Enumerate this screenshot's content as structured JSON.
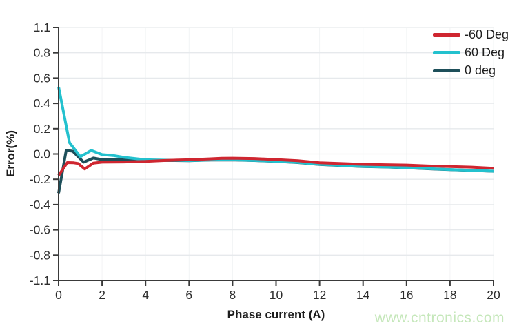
{
  "watermark": {
    "text": "www.cntronics.com",
    "color": "#c5e7ba"
  },
  "chart_data": {
    "type": "line",
    "title": "",
    "xlabel": "Phase current (A)",
    "ylabel": "Error(%)",
    "x_tick_labels": [
      "0",
      "2",
      "4",
      "6",
      "8",
      "10",
      "12",
      "14",
      "16",
      "18",
      "20"
    ],
    "x_tick_values": [
      0,
      2,
      4,
      6,
      8,
      10,
      12,
      14,
      16,
      18,
      20
    ],
    "y_tick_labels": [
      "1.1",
      "0.8",
      "0.6",
      "0.4",
      "0.2",
      "0.0",
      "-0.2",
      "-0.4",
      "-0.6",
      "-0.8",
      "-1.1"
    ],
    "xlim": [
      0,
      20
    ],
    "ylim": [
      -1.1,
      1.1
    ],
    "y_axis_note": "ticks equally spaced; labeled every 0.2 between -0.8 and 0.8 with end labels at -1.1 and 1.1",
    "grid": {
      "horizontal": true,
      "vertical": "very faint"
    },
    "legend_position": "top-right",
    "axis_color": "#3a3a3a",
    "grid_color": "#e6e9ec",
    "grid_color_vertical": "#f2f4f5",
    "tick_label_color": "#2d2d2d",
    "series": [
      {
        "name": "-60 Deg",
        "color": "#cf2630",
        "points": [
          [
            0,
            -0.17
          ],
          [
            0.4,
            -0.068
          ],
          [
            0.7,
            -0.07
          ],
          [
            0.9,
            -0.075
          ],
          [
            1.2,
            -0.118
          ],
          [
            1.6,
            -0.072
          ],
          [
            2,
            -0.065
          ],
          [
            3,
            -0.063
          ],
          [
            4,
            -0.059
          ],
          [
            5,
            -0.05
          ],
          [
            6,
            -0.046
          ],
          [
            7,
            -0.038
          ],
          [
            7.5,
            -0.034
          ],
          [
            8,
            -0.033
          ],
          [
            9,
            -0.036
          ],
          [
            10,
            -0.044
          ],
          [
            11,
            -0.053
          ],
          [
            12,
            -0.07
          ],
          [
            13,
            -0.076
          ],
          [
            14,
            -0.082
          ],
          [
            15,
            -0.085
          ],
          [
            16,
            -0.088
          ],
          [
            17,
            -0.095
          ],
          [
            18,
            -0.099
          ],
          [
            19,
            -0.104
          ],
          [
            20,
            -0.113
          ]
        ]
      },
      {
        "name": "60 Deg",
        "color": "#23c1ce",
        "points": [
          [
            0,
            0.53
          ],
          [
            0.5,
            0.09
          ],
          [
            1,
            -0.022
          ],
          [
            1.5,
            0.028
          ],
          [
            2,
            -0.005
          ],
          [
            2.5,
            -0.012
          ],
          [
            3,
            -0.026
          ],
          [
            4,
            -0.046
          ],
          [
            5,
            -0.049
          ],
          [
            6,
            -0.052
          ],
          [
            7,
            -0.047
          ],
          [
            8,
            -0.046
          ],
          [
            9,
            -0.051
          ],
          [
            10,
            -0.058
          ],
          [
            11,
            -0.067
          ],
          [
            12,
            -0.082
          ],
          [
            13,
            -0.09
          ],
          [
            14,
            -0.098
          ],
          [
            15,
            -0.102
          ],
          [
            16,
            -0.108
          ],
          [
            17,
            -0.116
          ],
          [
            18,
            -0.123
          ],
          [
            19,
            -0.129
          ],
          [
            20,
            -0.136
          ]
        ]
      },
      {
        "name": "0 deg",
        "color": "#1d4f5a",
        "points": [
          [
            0,
            -0.31
          ],
          [
            0.35,
            0.028
          ],
          [
            0.65,
            0.022
          ],
          [
            1.15,
            -0.065
          ],
          [
            1.6,
            -0.032
          ],
          [
            2,
            -0.044
          ],
          [
            3,
            -0.045
          ],
          [
            4,
            -0.05
          ],
          [
            5,
            -0.051
          ],
          [
            6,
            -0.053
          ],
          [
            7,
            -0.048
          ],
          [
            8,
            -0.047
          ],
          [
            9,
            -0.052
          ],
          [
            10,
            -0.059
          ],
          [
            11,
            -0.068
          ],
          [
            12,
            -0.083
          ],
          [
            13,
            -0.091
          ],
          [
            14,
            -0.099
          ],
          [
            15,
            -0.103
          ],
          [
            16,
            -0.109
          ],
          [
            17,
            -0.117
          ],
          [
            18,
            -0.124
          ],
          [
            19,
            -0.13
          ],
          [
            20,
            -0.137
          ]
        ]
      }
    ]
  }
}
